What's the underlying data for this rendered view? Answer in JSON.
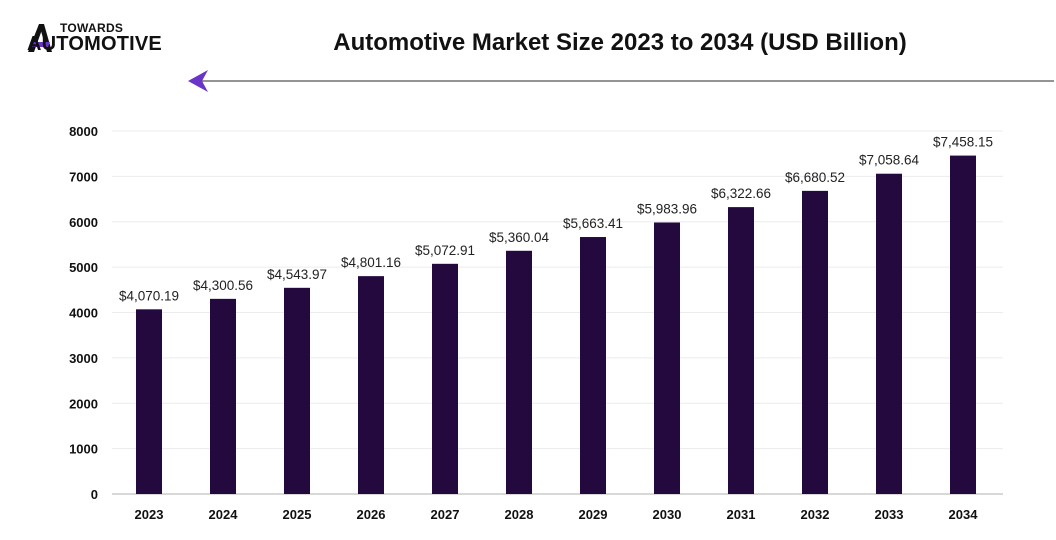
{
  "header": {
    "logo_line1": "TOWARDS",
    "logo_line2": "AUTOMOTIVE",
    "title": "Automotive Market Size 2023 to 2034 (USD Billion)"
  },
  "colors": {
    "bar": "#24093f",
    "accent": "#6a34c9",
    "axis_text": "#111111",
    "label_text": "#222222"
  },
  "chart_data": {
    "type": "bar",
    "title": "Automotive Market Size 2023 to 2034 (USD Billion)",
    "xlabel": "",
    "ylabel": "",
    "categories": [
      "2023",
      "2024",
      "2025",
      "2026",
      "2027",
      "2028",
      "2029",
      "2030",
      "2031",
      "2032",
      "2033",
      "2034"
    ],
    "values": [
      4070.19,
      4300.56,
      4543.97,
      4801.16,
      5072.91,
      5360.04,
      5663.41,
      5983.96,
      6322.66,
      6680.52,
      7058.64,
      7458.15
    ],
    "data_labels": [
      "$4,070.19",
      "$4,300.56",
      "$4,543.97",
      "$4,801.16",
      "$5,072.91",
      "$5,360.04",
      "$5,663.41",
      "$5,983.96",
      "$6,322.66",
      "$6,680.52",
      "$7,058.64",
      "$7,458.15"
    ],
    "yticks": [
      0,
      1000,
      2000,
      3000,
      4000,
      5000,
      6000,
      7000,
      8000
    ],
    "ylim": [
      0,
      8000
    ],
    "grid": true,
    "legend": "none"
  }
}
